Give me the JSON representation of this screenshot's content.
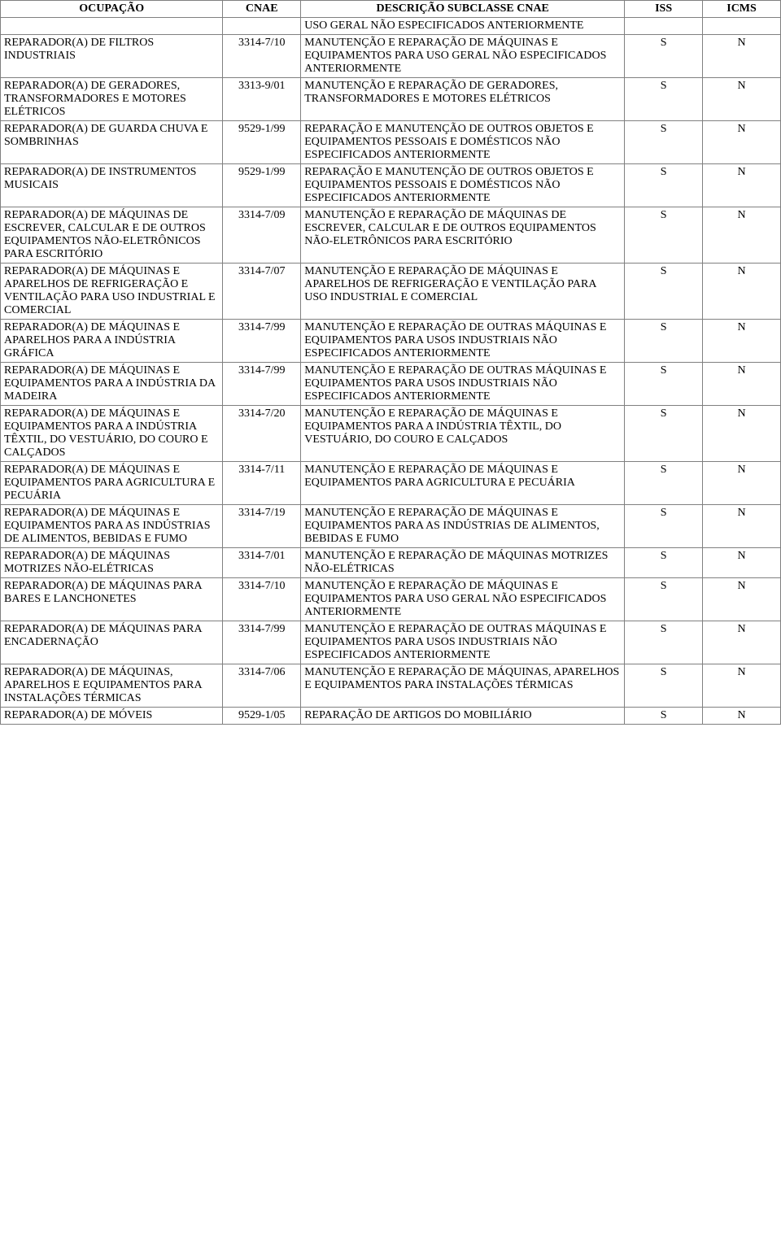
{
  "table": {
    "headers": [
      "OCUPAÇÃO",
      "CNAE",
      "DESCRIÇÃO SUBCLASSE CNAE",
      "ISS",
      "ICMS"
    ],
    "rows": [
      {
        "ocupacao": "",
        "cnae": "",
        "descricao": "USO GERAL NÃO ESPECIFICADOS ANTERIORMENTE",
        "iss": "",
        "icms": ""
      },
      {
        "ocupacao": "REPARADOR(A) DE FILTROS INDUSTRIAIS",
        "cnae": "3314-7/10",
        "descricao": "MANUTENÇÃO E REPARAÇÃO DE MÁQUINAS E EQUIPAMENTOS PARA USO GERAL NÃO ESPECIFICADOS ANTERIORMENTE",
        "iss": "S",
        "icms": "N"
      },
      {
        "ocupacao": "REPARADOR(A) DE GERADORES, TRANSFORMADORES E MOTORES ELÉTRICOS",
        "cnae": "3313-9/01",
        "descricao": "MANUTENÇÃO E REPARAÇÃO DE GERADORES, TRANSFORMADORES E MOTORES ELÉTRICOS",
        "iss": "S",
        "icms": "N"
      },
      {
        "ocupacao": "REPARADOR(A) DE GUARDA CHUVA E SOMBRINHAS",
        "cnae": "9529-1/99",
        "descricao": "REPARAÇÃO E MANUTENÇÃO DE OUTROS OBJETOS E EQUIPAMENTOS PESSOAIS E DOMÉSTICOS NÃO ESPECIFICADOS ANTERIORMENTE",
        "iss": "S",
        "icms": "N"
      },
      {
        "ocupacao": "REPARADOR(A) DE INSTRUMENTOS MUSICAIS",
        "cnae": "9529-1/99",
        "descricao": "REPARAÇÃO E MANUTENÇÃO DE OUTROS OBJETOS E EQUIPAMENTOS PESSOAIS E DOMÉSTICOS NÃO ESPECIFICADOS ANTERIORMENTE",
        "iss": "S",
        "icms": "N"
      },
      {
        "ocupacao": "REPARADOR(A) DE MÁQUINAS DE ESCREVER, CALCULAR E DE OUTROS EQUIPAMENTOS NÃO-ELETRÔNICOS PARA ESCRITÓRIO",
        "cnae": "3314-7/09",
        "descricao": "MANUTENÇÃO E REPARAÇÃO DE MÁQUINAS DE ESCREVER, CALCULAR E DE OUTROS EQUIPAMENTOS NÃO-ELETRÔNICOS PARA ESCRITÓRIO",
        "iss": "S",
        "icms": "N"
      },
      {
        "ocupacao": "REPARADOR(A) DE MÁQUINAS E APARELHOS DE REFRIGERAÇÃO E VENTILAÇÃO PARA USO INDUSTRIAL E COMERCIAL",
        "cnae": "3314-7/07",
        "descricao": "MANUTENÇÃO E REPARAÇÃO DE MÁQUINAS E APARELHOS DE REFRIGERAÇÃO E VENTILAÇÃO PARA USO INDUSTRIAL E COMERCIAL",
        "iss": "S",
        "icms": "N"
      },
      {
        "ocupacao": "REPARADOR(A) DE MÁQUINAS E APARELHOS PARA A INDÚSTRIA GRÁFICA",
        "cnae": "3314-7/99",
        "descricao": "MANUTENÇÃO E REPARAÇÃO DE OUTRAS MÁQUINAS E EQUIPAMENTOS PARA USOS INDUSTRIAIS NÃO ESPECIFICADOS ANTERIORMENTE",
        "iss": "S",
        "icms": "N"
      },
      {
        "ocupacao": "REPARADOR(A) DE MÁQUINAS E EQUIPAMENTOS PARA A INDÚSTRIA DA MADEIRA",
        "cnae": "3314-7/99",
        "descricao": "MANUTENÇÃO E REPARAÇÃO DE OUTRAS MÁQUINAS E EQUIPAMENTOS PARA USOS INDUSTRIAIS NÃO ESPECIFICADOS ANTERIORMENTE",
        "iss": "S",
        "icms": "N"
      },
      {
        "ocupacao": "REPARADOR(A) DE MÁQUINAS E EQUIPAMENTOS PARA A INDÚSTRIA TÊXTIL, DO VESTUÁRIO, DO COURO E CALÇADOS",
        "cnae": "3314-7/20",
        "descricao": "MANUTENÇÃO E REPARAÇÃO DE MÁQUINAS E EQUIPAMENTOS PARA A INDÚSTRIA TÊXTIL, DO VESTUÁRIO, DO COURO E CALÇADOS",
        "iss": "S",
        "icms": "N"
      },
      {
        "ocupacao": "REPARADOR(A) DE MÁQUINAS E EQUIPAMENTOS PARA AGRICULTURA E PECUÁRIA",
        "cnae": "3314-7/11",
        "descricao": "MANUTENÇÃO E REPARAÇÃO DE MÁQUINAS E EQUIPAMENTOS PARA AGRICULTURA E PECUÁRIA",
        "iss": "S",
        "icms": "N"
      },
      {
        "ocupacao": "REPARADOR(A) DE MÁQUINAS E EQUIPAMENTOS PARA AS INDÚSTRIAS DE ALIMENTOS, BEBIDAS E FUMO",
        "cnae": "3314-7/19",
        "descricao": "MANUTENÇÃO E REPARAÇÃO DE MÁQUINAS E EQUIPAMENTOS PARA AS INDÚSTRIAS DE ALIMENTOS, BEBIDAS E FUMO",
        "iss": "S",
        "icms": "N"
      },
      {
        "ocupacao": "REPARADOR(A) DE MÁQUINAS MOTRIZES NÃO-ELÉTRICAS",
        "cnae": "3314-7/01",
        "descricao": "MANUTENÇÃO E REPARAÇÃO DE MÁQUINAS MOTRIZES NÃO-ELÉTRICAS",
        "iss": "S",
        "icms": "N"
      },
      {
        "ocupacao": "REPARADOR(A) DE MÁQUINAS PARA BARES E LANCHONETES",
        "cnae": "3314-7/10",
        "descricao": "MANUTENÇÃO E REPARAÇÃO DE MÁQUINAS E EQUIPAMENTOS PARA USO GERAL NÃO ESPECIFICADOS ANTERIORMENTE",
        "iss": "S",
        "icms": "N"
      },
      {
        "ocupacao": "REPARADOR(A) DE MÁQUINAS PARA ENCADERNAÇÃO",
        "cnae": "3314-7/99",
        "descricao": "MANUTENÇÃO E REPARAÇÃO DE OUTRAS MÁQUINAS E EQUIPAMENTOS PARA USOS INDUSTRIAIS NÃO ESPECIFICADOS ANTERIORMENTE",
        "iss": "S",
        "icms": "N"
      },
      {
        "ocupacao": "REPARADOR(A) DE MÁQUINAS, APARELHOS E EQUIPAMENTOS PARA INSTALAÇÕES TÉRMICAS",
        "cnae": "3314-7/06",
        "descricao": "MANUTENÇÃO E REPARAÇÃO DE MÁQUINAS, APARELHOS E EQUIPAMENTOS PARA INSTALAÇÕES TÉRMICAS",
        "iss": "S",
        "icms": "N"
      },
      {
        "ocupacao": "REPARADOR(A) DE MÓVEIS",
        "cnae": "9529-1/05",
        "descricao": "REPARAÇÃO DE ARTIGOS DO MOBILIÁRIO",
        "iss": "S",
        "icms": "N"
      }
    ]
  }
}
